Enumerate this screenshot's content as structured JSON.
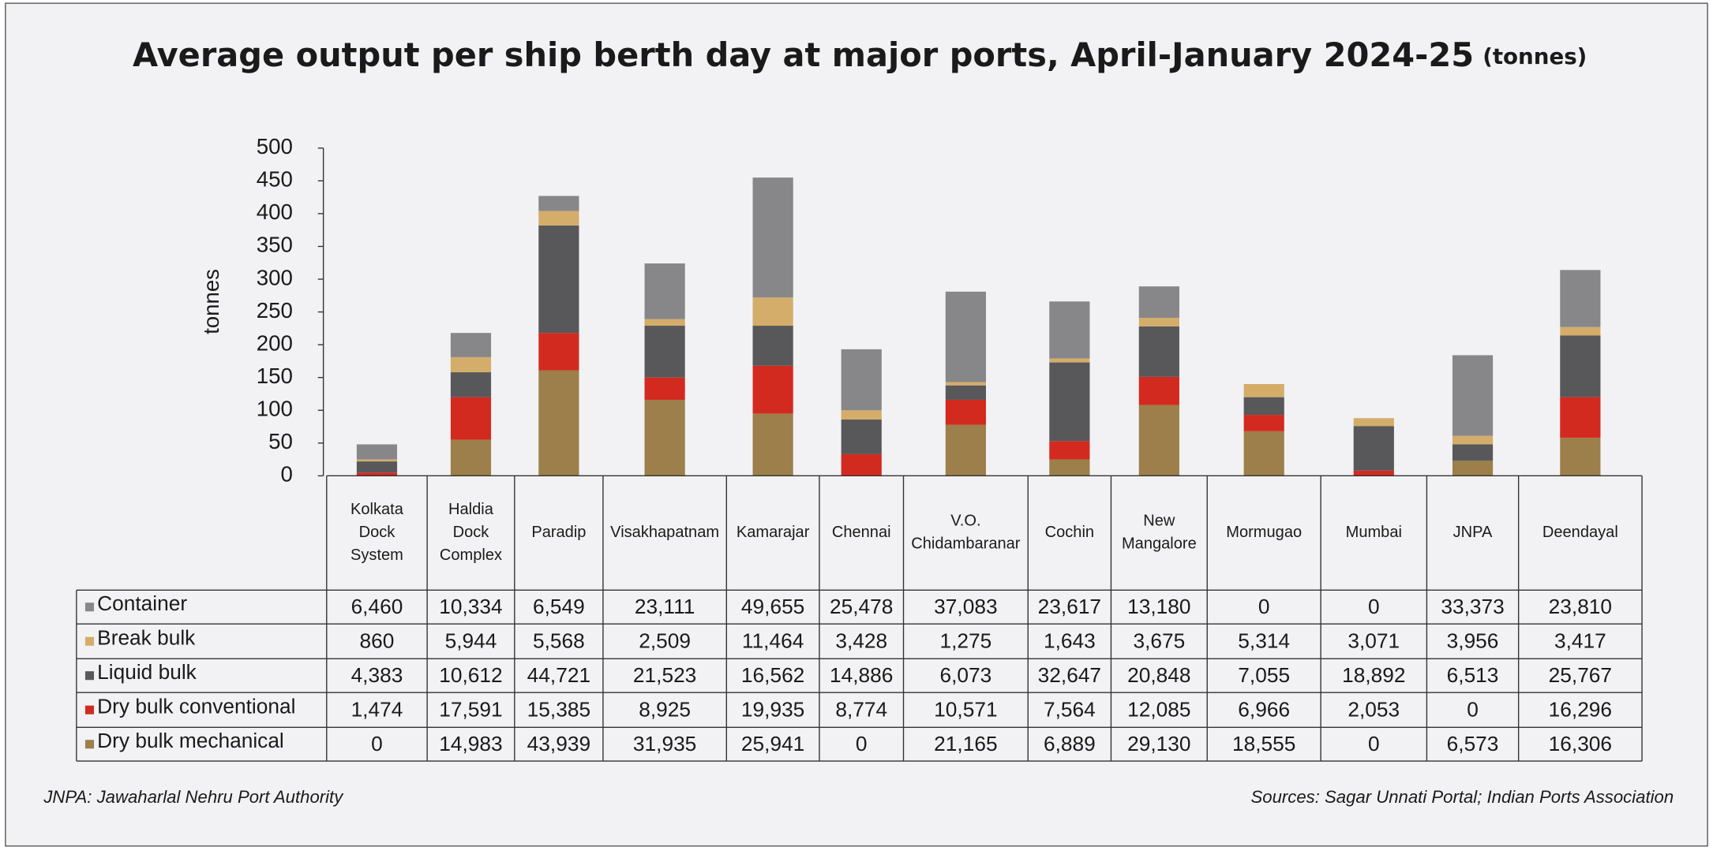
{
  "chart_data": {
    "type": "stacked_bar",
    "title": "Average output per ship berth day at major ports, April-January 2024-25",
    "subtitle": "(tonnes)",
    "y_label": "tonnes",
    "footnote": "JNPA: Jawaharlal Nehru Port Authority",
    "source": "Sources: Sagar Unnati Portal; Indian Ports Association",
    "categories": [
      "Kolkata Dock System",
      "Haldia Dock Complex",
      "Paradip",
      "Visakhapatnam",
      "Kamarajar",
      "Chennai",
      "V.O. Chidambaranar",
      "Cochin",
      "New Mangalore",
      "Mormugao",
      "Mumbai",
      "JNPA",
      "Deendayal"
    ],
    "ylim": [
      0,
      500
    ],
    "yticks": [
      0,
      50,
      100,
      150,
      200,
      250,
      300,
      350,
      400,
      450,
      500
    ],
    "grid": false,
    "series": [
      {
        "name": "Container",
        "color": "#87878a",
        "values": [
          23,
          37,
          23,
          85,
          183,
          93,
          138,
          87,
          48,
          0,
          0,
          123,
          87
        ]
      },
      {
        "name": "Break bulk",
        "color": "#d4ad6a",
        "values": [
          3,
          23,
          22,
          10,
          43,
          14,
          5,
          6,
          13,
          20,
          12,
          13,
          13
        ]
      },
      {
        "name": "Liquid bulk",
        "color": "#58585a",
        "values": [
          17,
          38,
          164,
          79,
          61,
          53,
          22,
          120,
          77,
          27,
          68,
          25,
          94
        ]
      },
      {
        "name": "Dry bulk conventional",
        "color": "#d32a20",
        "values": [
          5,
          65,
          57,
          34,
          73,
          33,
          38,
          28,
          43,
          25,
          8,
          0,
          62
        ]
      },
      {
        "name": "Dry bulk mechanical",
        "color": "#9c7f4a",
        "values": [
          0,
          55,
          161,
          116,
          95,
          0,
          78,
          25,
          108,
          68,
          0,
          23,
          58
        ]
      }
    ],
    "table": {
      "rows": [
        [
          "6,460",
          "10,334",
          "6,549",
          "23,111",
          "49,655",
          "25,478",
          "37,083",
          "23,617",
          "13,180",
          "0",
          "0",
          "33,373",
          "23,810"
        ],
        [
          "860",
          "5,944",
          "5,568",
          "2,509",
          "11,464",
          "3,428",
          "1,275",
          "1,643",
          "3,675",
          "5,314",
          "3,071",
          "3,956",
          "3,417"
        ],
        [
          "4,383",
          "10,612",
          "44,721",
          "21,523",
          "16,562",
          "14,886",
          "6,073",
          "32,647",
          "20,848",
          "7,055",
          "18,892",
          "6,513",
          "25,767"
        ],
        [
          "1,474",
          "17,591",
          "15,385",
          "8,925",
          "19,935",
          "8,774",
          "10,571",
          "7,564",
          "12,085",
          "6,966",
          "2,053",
          "0",
          "16,296"
        ],
        [
          "0",
          "14,983",
          "43,939",
          "31,935",
          "25,941",
          "0",
          "21,165",
          "6,889",
          "29,130",
          "18,555",
          "0",
          "6,573",
          "16,306"
        ]
      ]
    }
  }
}
